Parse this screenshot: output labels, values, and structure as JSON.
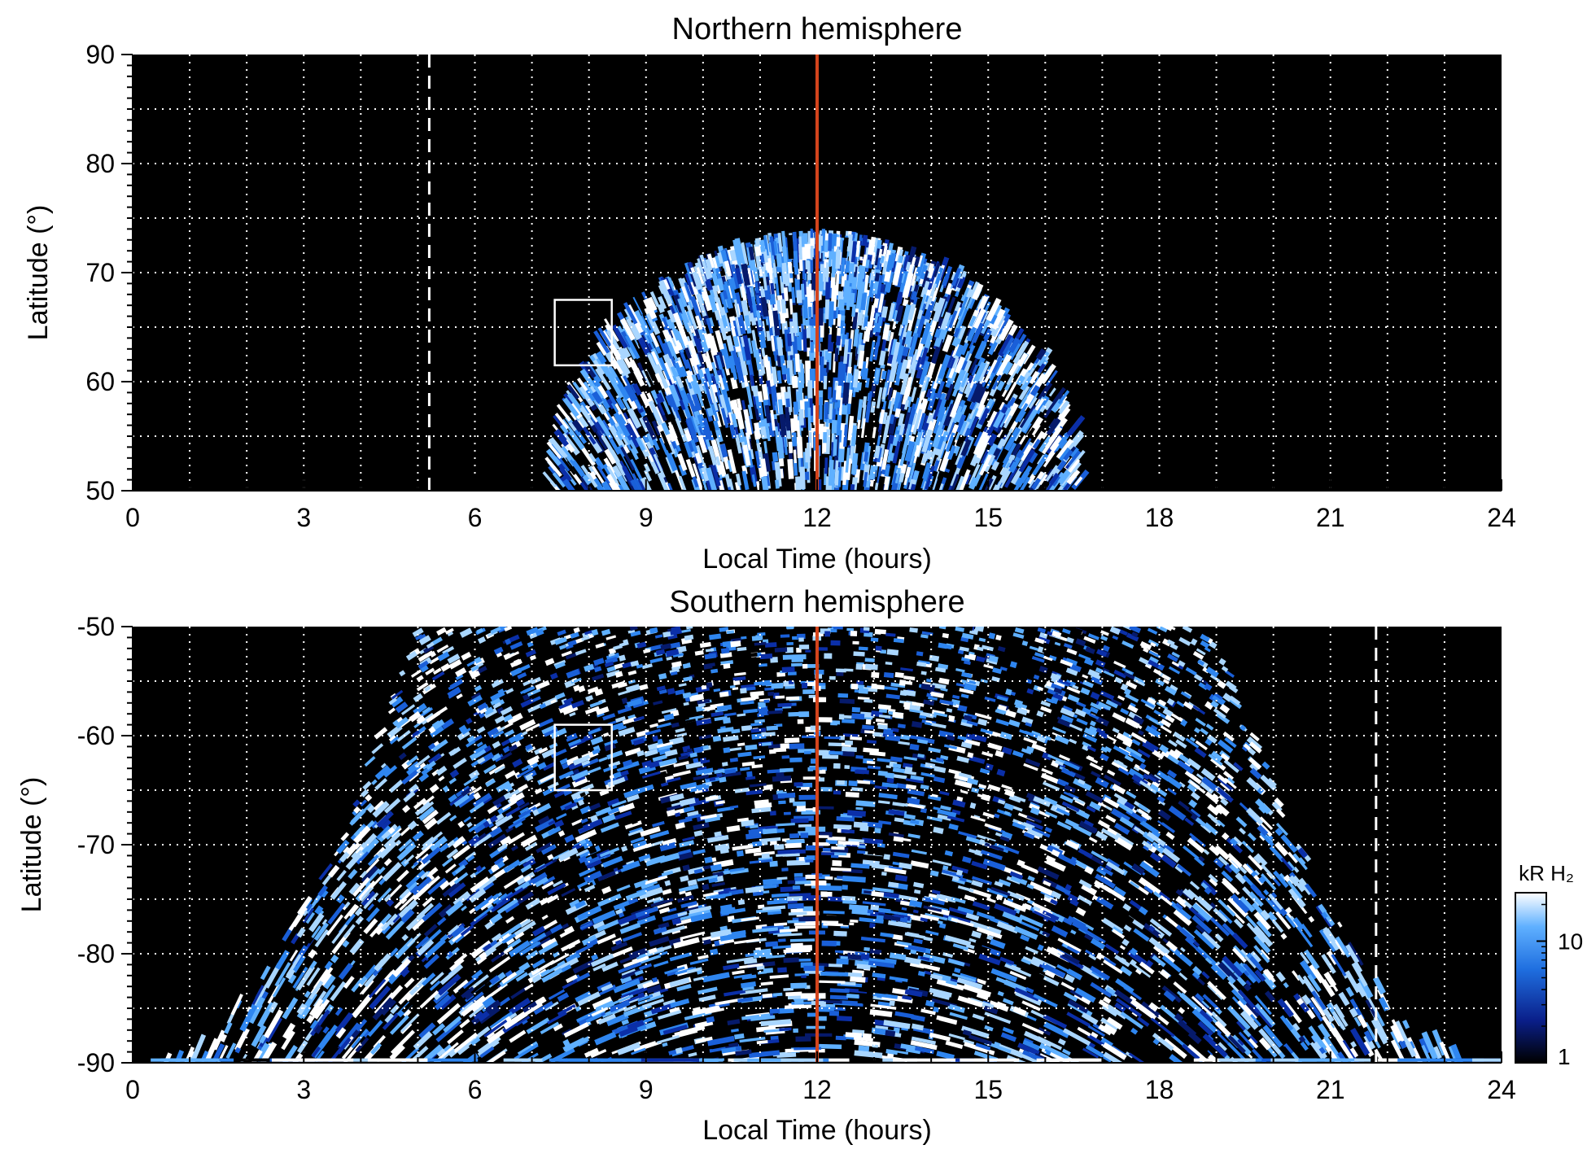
{
  "chart_data": [
    {
      "type": "heatmap",
      "title": "Northern hemisphere",
      "xlabel": "Local Time (hours)",
      "ylabel": "Latitude (°)",
      "xlim": [
        0,
        24
      ],
      "ylim": [
        50,
        90
      ],
      "xticks": [
        0,
        3,
        6,
        9,
        12,
        15,
        18,
        21,
        24
      ],
      "yticks": [
        50,
        60,
        70,
        80,
        90
      ],
      "grid": true,
      "emission_region": {
        "center_lt": 12,
        "lt_halfwidth_at_50": 4.7,
        "lat_max": 73
      },
      "markers": {
        "noon_line_lt": 12,
        "noon_line_color": "#d4441c",
        "dashed_line_lt": 5.2,
        "box": {
          "lt": [
            7.4,
            8.4
          ],
          "lat": [
            61.5,
            67.5
          ]
        }
      }
    },
    {
      "type": "heatmap",
      "title": "Southern hemisphere",
      "xlabel": "Local Time (hours)",
      "ylabel": "Latitude (°)",
      "xlim": [
        0,
        24
      ],
      "ylim": [
        -90,
        -50
      ],
      "xticks": [
        0,
        3,
        6,
        9,
        12,
        15,
        18,
        21,
        24
      ],
      "yticks": [
        -90,
        -80,
        -70,
        -60,
        -50
      ],
      "grid": true,
      "emission_region": {
        "center_lt": 12,
        "lt_halfwidth_at_pole": 12,
        "lt_halfwidth_at_50": 7
      },
      "markers": {
        "noon_line_lt": 12,
        "noon_line_color": "#d4441c",
        "dashed_line_lt": 21.8,
        "box": {
          "lt": [
            7.4,
            8.4
          ],
          "lat": [
            -65,
            -59
          ]
        }
      }
    }
  ],
  "colorbar": {
    "label": "kR H₂",
    "ticks": [
      1,
      10
    ],
    "tick_labels": [
      "1",
      "10"
    ],
    "range": [
      1,
      25
    ],
    "scale": "log",
    "colors": [
      "#000000",
      "#0a1f8a",
      "#1f6fe0",
      "#5fb0ff",
      "#ffffff"
    ]
  }
}
